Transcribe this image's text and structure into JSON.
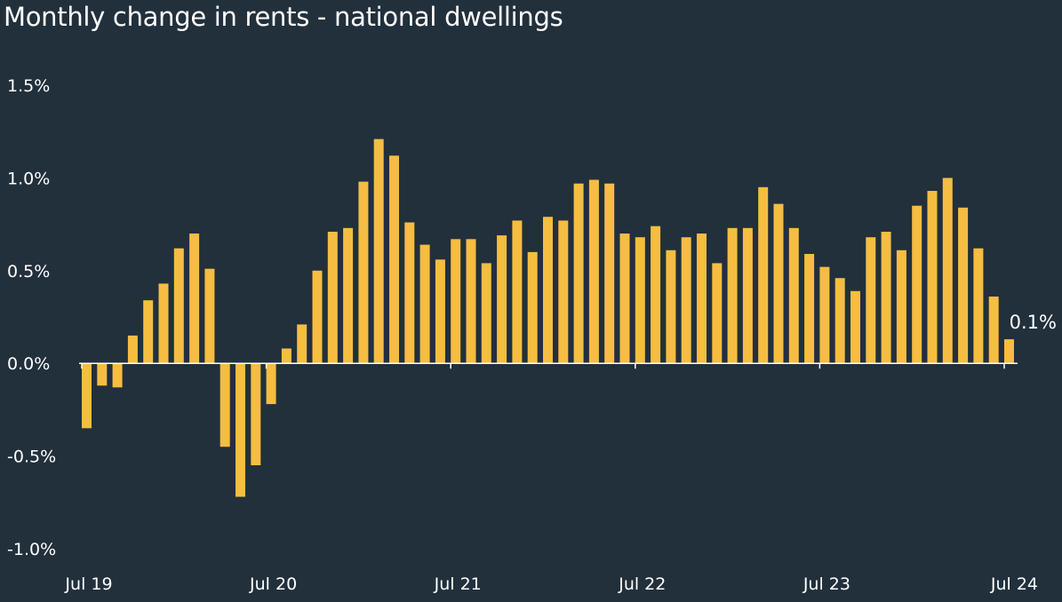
{
  "title": "Monthly change in rents - national dwellings",
  "colors": {
    "background": "#22303c",
    "bar": "#f5bd41",
    "axis": "#ffffff",
    "text": "#ffffff"
  },
  "chart_data": {
    "type": "bar",
    "title": "Monthly change in rents - national dwellings",
    "xlabel": "",
    "ylabel": "",
    "ylim": [
      -1.0,
      1.5
    ],
    "y_ticks": [
      1.5,
      1.0,
      0.5,
      0.0,
      -0.5,
      -1.0
    ],
    "y_tick_labels": [
      "1.5%",
      "1.0%",
      "0.5%",
      "0.0%",
      "-0.5%",
      "-1.0%"
    ],
    "x_tick_labels": [
      {
        "label": "Jul 19",
        "index": 0
      },
      {
        "label": "Jul 20",
        "index": 12
      },
      {
        "label": "Jul 21",
        "index": 24
      },
      {
        "label": "Jul 22",
        "index": 36
      },
      {
        "label": "Jul 23",
        "index": 48
      },
      {
        "label": "Jul 24",
        "index": 60
      }
    ],
    "grid": false,
    "legend": "none",
    "categories": [
      "Jul 19",
      "Aug 19",
      "Sep 19",
      "Oct 19",
      "Nov 19",
      "Dec 19",
      "Jan 20",
      "Feb 20",
      "Mar 20",
      "Apr 20",
      "May 20",
      "Jun 20",
      "Jul 20",
      "Aug 20",
      "Sep 20",
      "Oct 20",
      "Nov 20",
      "Dec 20",
      "Jan 21",
      "Feb 21",
      "Mar 21",
      "Apr 21",
      "May 21",
      "Jun 21",
      "Jul 21",
      "Aug 21",
      "Sep 21",
      "Oct 21",
      "Nov 21",
      "Dec 21",
      "Jan 22",
      "Feb 22",
      "Mar 22",
      "Apr 22",
      "May 22",
      "Jun 22",
      "Jul 22",
      "Aug 22",
      "Sep 22",
      "Oct 22",
      "Nov 22",
      "Dec 22",
      "Jan 23",
      "Feb 23",
      "Mar 23",
      "Apr 23",
      "May 23",
      "Jun 23",
      "Jul 23",
      "Aug 23",
      "Sep 23",
      "Oct 23",
      "Nov 23",
      "Dec 23",
      "Jan 24",
      "Feb 24",
      "Mar 24",
      "Apr 24",
      "May 24",
      "Jun 24",
      "Jul 24"
    ],
    "values": [
      -0.35,
      -0.12,
      -0.13,
      0.15,
      0.34,
      0.43,
      0.62,
      0.7,
      0.51,
      -0.45,
      -0.72,
      -0.55,
      -0.22,
      0.08,
      0.21,
      0.5,
      0.71,
      0.73,
      0.98,
      1.21,
      1.12,
      0.76,
      0.64,
      0.56,
      0.67,
      0.67,
      0.54,
      0.69,
      0.77,
      0.6,
      0.79,
      0.77,
      0.97,
      0.99,
      0.97,
      0.7,
      0.68,
      0.74,
      0.61,
      0.68,
      0.7,
      0.54,
      0.73,
      0.73,
      0.95,
      0.86,
      0.73,
      0.59,
      0.52,
      0.46,
      0.39,
      0.68,
      0.71,
      0.61,
      0.85,
      0.93,
      1.0,
      0.84,
      0.62,
      0.36,
      0.13
    ],
    "data_labels": [
      {
        "index": 60,
        "text": "0.1%"
      }
    ]
  }
}
